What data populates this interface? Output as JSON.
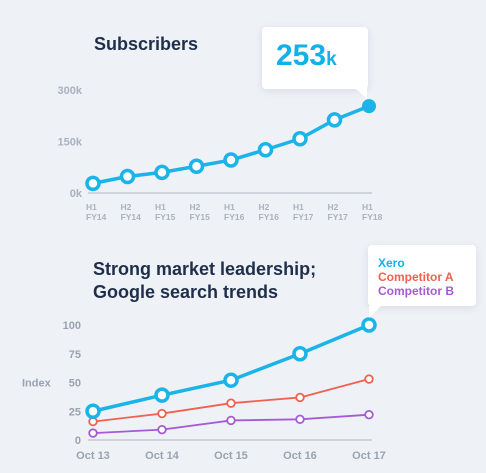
{
  "chart_data": [
    {
      "type": "line",
      "title": "Subscribers",
      "callout": {
        "value": "253",
        "unit": "k"
      },
      "categories": [
        [
          "H1",
          "FY14"
        ],
        [
          "H2",
          "FY14"
        ],
        [
          "H1",
          "FY15"
        ],
        [
          "H2",
          "FY15"
        ],
        [
          "H1",
          "FY16"
        ],
        [
          "H2",
          "FY16"
        ],
        [
          "H1",
          "FY17"
        ],
        [
          "H2",
          "FY17"
        ],
        [
          "H1",
          "FY18"
        ]
      ],
      "yticks": [
        {
          "v": 0,
          "label": "0k"
        },
        {
          "v": 150,
          "label": "150k"
        },
        {
          "v": 300,
          "label": "300k"
        }
      ],
      "ylim": [
        0,
        300
      ],
      "series": [
        {
          "values": [
            28,
            48,
            60,
            78,
            96,
            126,
            158,
            213,
            253
          ],
          "color": "#1ab4e8"
        }
      ]
    },
    {
      "type": "line",
      "title": [
        "Strong market leadership;",
        "Google search trends"
      ],
      "categories": [
        "Oct 13",
        "Oct 14",
        "Oct 15",
        "Oct 16",
        "Oct 17"
      ],
      "ylabel": "Index",
      "yticks": [
        {
          "v": 0,
          "label": "0"
        },
        {
          "v": 25,
          "label": "25"
        },
        {
          "v": 50,
          "label": "50"
        },
        {
          "v": 75,
          "label": "75"
        },
        {
          "v": 100,
          "label": "100"
        }
      ],
      "ylim": [
        0,
        100
      ],
      "legend_position": "top-right",
      "series": [
        {
          "name": "Xero",
          "values": [
            25,
            39,
            52,
            75,
            100
          ],
          "color": "#1ab4e8",
          "open_markers": true
        },
        {
          "name": "Competitor A",
          "values": [
            16,
            23,
            32,
            37,
            53
          ],
          "color": "#f0614f",
          "open_markers": true
        },
        {
          "name": "Competitor B",
          "values": [
            6,
            9,
            17,
            18,
            22
          ],
          "color": "#a55bd6",
          "open_markers": true
        }
      ]
    }
  ]
}
